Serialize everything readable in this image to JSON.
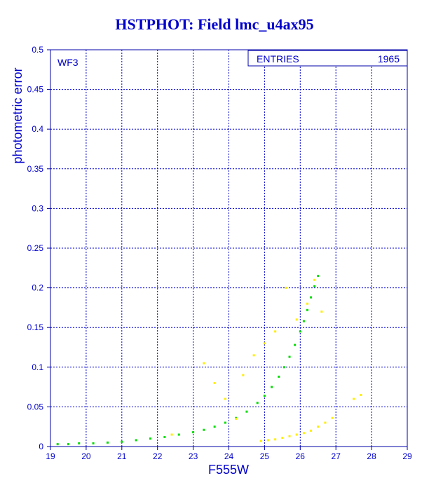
{
  "chart_data": {
    "type": "scatter",
    "title": "HSTPHOT: Field lmc_u4ax95",
    "xlabel": "F555W",
    "ylabel": "photometric error",
    "xlim": [
      19,
      29
    ],
    "ylim": [
      0,
      0.5
    ],
    "xticks": [
      "19",
      "20",
      "21",
      "22",
      "23",
      "24",
      "25",
      "26",
      "27",
      "28",
      "29"
    ],
    "yticks": [
      "0",
      "0.05",
      "0.1",
      "0.15",
      "0.2",
      "0.25",
      "0.3",
      "0.35",
      "0.4",
      "0.45",
      "0.5"
    ],
    "grid": true,
    "panel_label": "WF3",
    "stats_box": {
      "label": "ENTRIES",
      "value": "1965"
    },
    "colors": {
      "axis": "#0000cc",
      "frame": "#0000aa",
      "grid": "#0000cc",
      "main": "#00dd00",
      "secondary": "#ffee00"
    },
    "series": [
      {
        "color": "#00dd00",
        "x": [
          19.2,
          19.5,
          19.8,
          20.2,
          20.6,
          21.0,
          21.4,
          21.8,
          22.2,
          22.6,
          23.0,
          23.3,
          23.6,
          23.9,
          24.2,
          24.5,
          24.8,
          25.0,
          25.2,
          25.4,
          25.55,
          25.7,
          25.85,
          26.0,
          26.1,
          26.2,
          26.3,
          26.4,
          26.5
        ],
        "y": [
          0.003,
          0.003,
          0.004,
          0.004,
          0.005,
          0.006,
          0.008,
          0.01,
          0.012,
          0.015,
          0.018,
          0.021,
          0.025,
          0.03,
          0.036,
          0.044,
          0.055,
          0.064,
          0.075,
          0.088,
          0.1,
          0.113,
          0.128,
          0.145,
          0.158,
          0.172,
          0.188,
          0.202,
          0.215
        ]
      },
      {
        "color": "#ffee00",
        "x": [
          24.9,
          25.1,
          25.3,
          25.5,
          25.7,
          25.9,
          26.1,
          26.3,
          26.5,
          26.7,
          26.9,
          22.4,
          23.3,
          23.6,
          23.9,
          24.2,
          24.4,
          24.7,
          25.0,
          25.3,
          25.6,
          25.9,
          26.2,
          26.4,
          26.6,
          27.5,
          27.7
        ],
        "y": [
          0.007,
          0.008,
          0.009,
          0.011,
          0.013,
          0.015,
          0.017,
          0.02,
          0.025,
          0.03,
          0.036,
          0.015,
          0.105,
          0.08,
          0.06,
          0.035,
          0.09,
          0.115,
          0.13,
          0.145,
          0.2,
          0.16,
          0.18,
          0.21,
          0.17,
          0.06,
          0.065
        ]
      }
    ]
  }
}
